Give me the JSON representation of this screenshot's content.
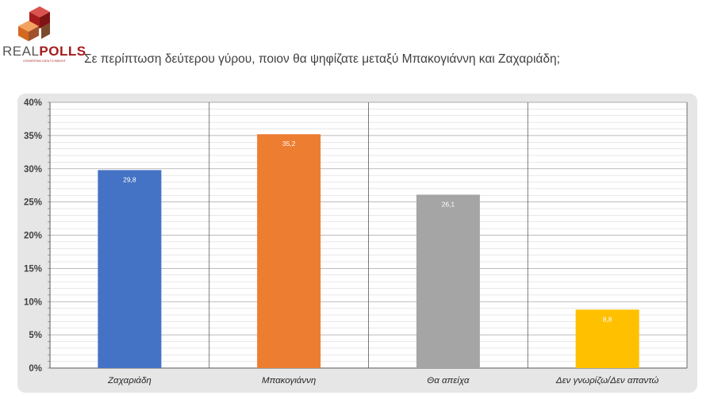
{
  "brand": {
    "name_light": "REAL",
    "name_bold": "POLLS",
    "tagline": "CONVERTING DATA TO INSIGHT",
    "colors": {
      "red": "#a61c1c",
      "orange": "#d2691e",
      "brown": "#7a4a2a",
      "gray": "#555555"
    }
  },
  "question": "Σε περίπτωση δεύτερου γύρου, ποιον θα ψηφίζατε μεταξύ Μπακογιάννη και Ζαχαριάδη;",
  "chart_data": {
    "type": "bar",
    "title": "",
    "xlabel": "",
    "ylabel": "",
    "categories": [
      "Ζαχαριάδη",
      "Μπακογιάννη",
      "Θα απείχα",
      "Δεν γνωρίζω/Δεν απαντώ"
    ],
    "values": [
      29.8,
      35.2,
      26.1,
      8.8
    ],
    "value_labels": [
      "29,8",
      "35,2",
      "26,1",
      "8,8"
    ],
    "colors": [
      "#4472c4",
      "#ed7d31",
      "#a5a5a5",
      "#ffc000"
    ],
    "ylim": [
      0,
      40
    ],
    "y_ticks": [
      0,
      5,
      10,
      15,
      20,
      25,
      30,
      35,
      40
    ],
    "y_tick_labels": [
      "0%",
      "5%",
      "10%",
      "15%",
      "20%",
      "25%",
      "30%",
      "35%",
      "40%"
    ],
    "grid": true,
    "legend": "none"
  }
}
